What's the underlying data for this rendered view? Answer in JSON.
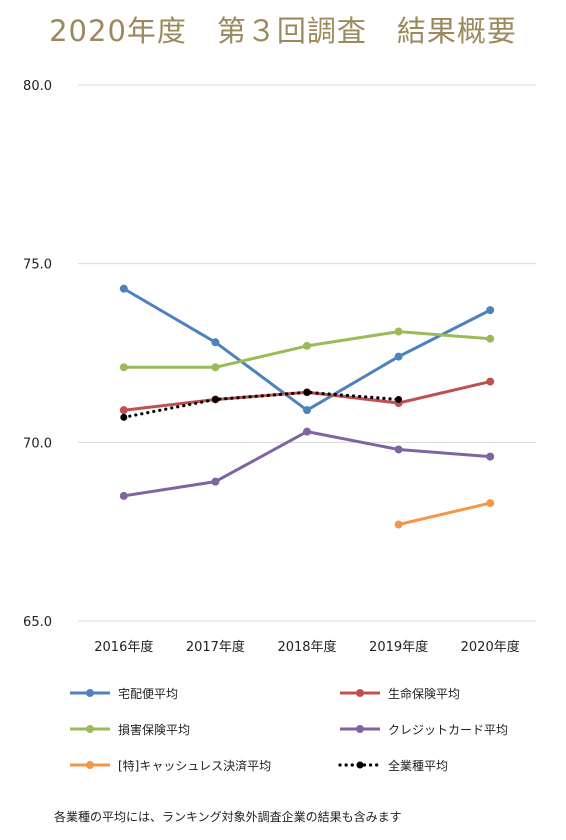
{
  "chart_data": {
    "type": "line",
    "title": "2020年度　第３回調査　結果概要",
    "categories": [
      "2016年度",
      "2017年度",
      "2018年度",
      "2019年度",
      "2020年度"
    ],
    "ylim": [
      65.0,
      80.0
    ],
    "yticks": [
      "65.0",
      "70.0",
      "75.0",
      "80.0"
    ],
    "grid": true,
    "legend_position": "bottom",
    "series": [
      {
        "name": "宅配便平均",
        "color": "#4f81bd",
        "style": "solid",
        "values": [
          74.3,
          72.8,
          70.9,
          72.4,
          73.7
        ]
      },
      {
        "name": "生命保険平均",
        "color": "#c0504d",
        "style": "solid",
        "values": [
          70.9,
          71.2,
          71.4,
          71.1,
          71.7
        ]
      },
      {
        "name": "損害保険平均",
        "color": "#9bbb59",
        "style": "solid",
        "values": [
          72.1,
          72.1,
          72.7,
          73.1,
          72.9
        ]
      },
      {
        "name": "クレジットカード平均",
        "color": "#8064a2",
        "style": "solid",
        "values": [
          68.5,
          68.9,
          70.3,
          69.8,
          69.6
        ]
      },
      {
        "name": "[特]キャッシュレス決済平均",
        "color": "#f79646",
        "style": "solid",
        "values": [
          null,
          null,
          null,
          67.7,
          68.3
        ]
      },
      {
        "name": "全業種平均",
        "color": "#000000",
        "style": "dotted",
        "values": [
          70.7,
          71.2,
          71.4,
          71.2,
          null
        ]
      }
    ],
    "footnote": "各業種の平均には、ランキング対象外調査企業の結果も含みます"
  }
}
